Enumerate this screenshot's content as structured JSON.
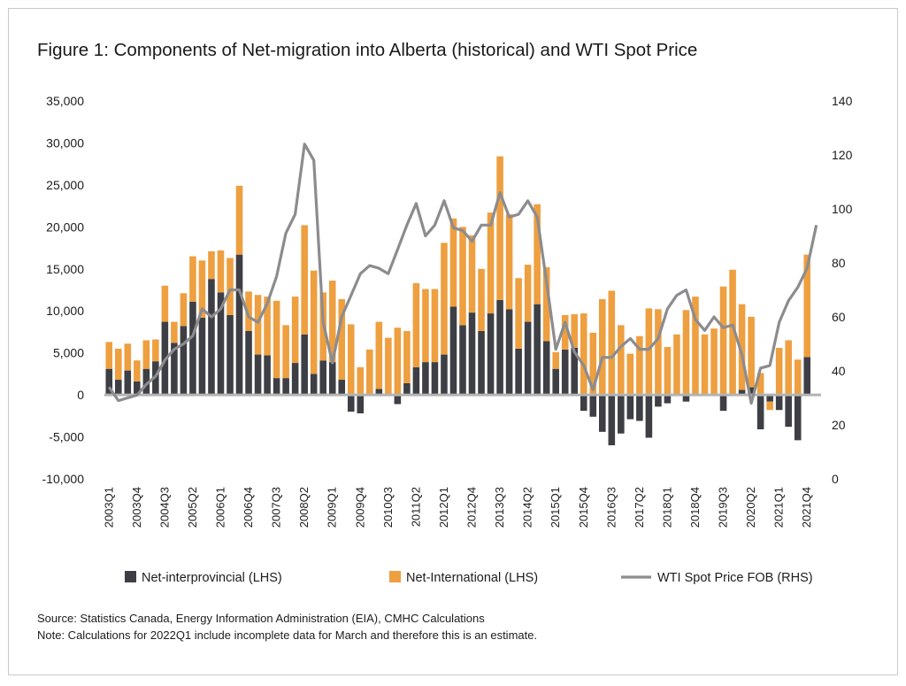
{
  "title": "Figure 1: Components of Net-migration into Alberta (historical) and WTI Spot Price",
  "source": "Source: Statistics Canada, Energy Information Administration (EIA), CMHC Calculations",
  "note": "Note: Calculations for 2022Q1 include incomplete data for March and therefore this is an estimate.",
  "chart_data": {
    "type": "bar",
    "stacked": true,
    "categories": [
      "2003Q1",
      "2003Q2",
      "2003Q3",
      "2003Q4",
      "2004Q1",
      "2004Q2",
      "2004Q3",
      "2004Q4",
      "2005Q1",
      "2005Q2",
      "2005Q3",
      "2005Q4",
      "2006Q1",
      "2006Q2",
      "2006Q3",
      "2006Q4",
      "2007Q1",
      "2007Q2",
      "2007Q3",
      "2007Q4",
      "2008Q1",
      "2008Q2",
      "2008Q3",
      "2008Q4",
      "2009Q1",
      "2009Q2",
      "2009Q3",
      "2009Q4",
      "2010Q1",
      "2010Q2",
      "2010Q3",
      "2010Q4",
      "2011Q1",
      "2011Q2",
      "2011Q3",
      "2011Q4",
      "2012Q1",
      "2012Q2",
      "2012Q3",
      "2012Q4",
      "2013Q1",
      "2013Q2",
      "2013Q3",
      "2013Q4",
      "2014Q1",
      "2014Q2",
      "2014Q3",
      "2014Q4",
      "2015Q1",
      "2015Q2",
      "2015Q3",
      "2015Q4",
      "2016Q1",
      "2016Q2",
      "2016Q3",
      "2016Q4",
      "2017Q1",
      "2017Q2",
      "2017Q3",
      "2017Q4",
      "2018Q1",
      "2018Q2",
      "2018Q3",
      "2018Q4",
      "2019Q1",
      "2019Q2",
      "2019Q3",
      "2019Q4",
      "2020Q1",
      "2020Q2",
      "2020Q3",
      "2020Q4",
      "2021Q1",
      "2021Q2",
      "2021Q3",
      "2021Q4",
      "2022Q1"
    ],
    "tick_labels": [
      "2003Q1",
      "2003Q4",
      "2004Q3",
      "2005Q2",
      "2006Q1",
      "2006Q4",
      "2007Q3",
      "2008Q2",
      "2009Q1",
      "2009Q4",
      "2010Q3",
      "2011Q2",
      "2012Q1",
      "2012Q4",
      "2013Q3",
      "2014Q2",
      "2015Q1",
      "2015Q4",
      "2016Q3",
      "2017Q2",
      "2018Q1",
      "2018Q4",
      "2019Q3",
      "2020Q2",
      "2021Q1",
      "2021Q4"
    ],
    "series": [
      {
        "name": "Net-interprovincial (LHS)",
        "axis": "left",
        "color": "#3d3f45",
        "values": [
          3100,
          1800,
          2900,
          1600,
          3100,
          4000,
          8700,
          6200,
          8200,
          11100,
          9200,
          13800,
          12200,
          9500,
          16700,
          7600,
          4800,
          4700,
          2000,
          2000,
          3800,
          7200,
          2500,
          4100,
          3900,
          1800,
          -2000,
          -2200,
          0,
          700,
          0,
          -1100,
          1400,
          3300,
          3900,
          3900,
          4800,
          10500,
          8300,
          9800,
          7600,
          9700,
          11300,
          10200,
          5500,
          8700,
          10800,
          6400,
          3100,
          5400,
          5600,
          -1900,
          -2600,
          -4400,
          -6000,
          -4600,
          -2900,
          -3100,
          -5100,
          -1400,
          -1000,
          0,
          -800,
          0,
          0,
          0,
          -1900,
          0,
          600,
          900,
          -4100,
          -800,
          -1800,
          -3800,
          -5400,
          4500,
          0
        ]
      },
      {
        "name": "Net-International (LHS)",
        "axis": "left",
        "color": "#ee9f40",
        "values": [
          3200,
          3700,
          3200,
          2500,
          3400,
          2600,
          4300,
          2500,
          3900,
          5400,
          6800,
          3300,
          5000,
          6800,
          8200,
          4700,
          7100,
          7000,
          9200,
          6300,
          7900,
          13000,
          12300,
          8100,
          9700,
          9600,
          8400,
          3300,
          5400,
          8000,
          6800,
          8000,
          6200,
          10000,
          8700,
          8700,
          13300,
          10500,
          11700,
          9200,
          7400,
          12000,
          17100,
          11300,
          8400,
          6800,
          11900,
          8800,
          2000,
          4100,
          4000,
          9700,
          7400,
          11400,
          12400,
          8300,
          4900,
          7000,
          10300,
          10200,
          5700,
          7200,
          10100,
          11700,
          7200,
          7900,
          12900,
          14900,
          10200,
          8400,
          2600,
          -1000,
          5600,
          6500,
          4200,
          12200,
          0
        ]
      },
      {
        "name": "WTI Spot Price FOB (RHS)",
        "axis": "right",
        "type": "line",
        "color": "#8c8c8f",
        "values": [
          34,
          29,
          30,
          31,
          35,
          38,
          44,
          48,
          50,
          53,
          63,
          60,
          63,
          70,
          70,
          60,
          58,
          65,
          75,
          91,
          98,
          124,
          118,
          58,
          43,
          60,
          68,
          76,
          79,
          78,
          76,
          85,
          94,
          102,
          90,
          94,
          103,
          93,
          92,
          88,
          94,
          94,
          106,
          97,
          98,
          103,
          97,
          73,
          48,
          58,
          47,
          42,
          33,
          45,
          45,
          49,
          52,
          48,
          48,
          52,
          63,
          68,
          70,
          59,
          55,
          60,
          56,
          57,
          46,
          28,
          41,
          42,
          58,
          66,
          71,
          78,
          94
        ]
      }
    ],
    "left_axis": {
      "min": -10000,
      "max": 35000,
      "ticks": [
        "-10,000",
        "-5,000",
        "0",
        "5,000",
        "10,000",
        "15,000",
        "20,000",
        "25,000",
        "30,000",
        "35,000"
      ]
    },
    "right_axis": {
      "min": 0,
      "max": 140,
      "ticks": [
        "0",
        "20",
        "40",
        "60",
        "80",
        "100",
        "120",
        "140"
      ]
    },
    "grid": false,
    "legend": {
      "position": "bottom"
    }
  }
}
